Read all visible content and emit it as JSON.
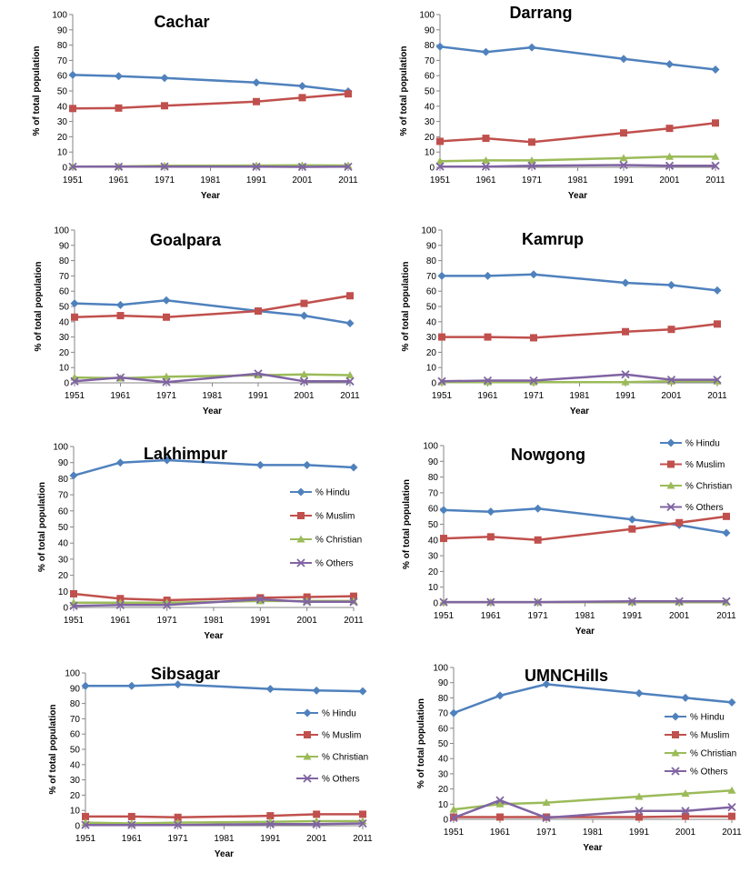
{
  "legend_labels": [
    "% Hindu",
    "% Muslim",
    "% Christian",
    "% Others"
  ],
  "colors": {
    "hindu": "#4F81BD",
    "muslim": "#C0504D",
    "christian": "#9BBB59",
    "others": "#8064A2"
  },
  "chart_data": [
    {
      "type": "line",
      "title": "Cachar",
      "xlabel": "Year",
      "ylabel": "% of total population",
      "ylim": [
        0,
        100
      ],
      "yticks": [
        0,
        10,
        20,
        30,
        40,
        50,
        60,
        70,
        80,
        90,
        100
      ],
      "xticks": [
        1951,
        1961,
        1971,
        1981,
        1991,
        2001,
        2011
      ],
      "show_legend": false,
      "series": [
        {
          "name": "% Hindu",
          "x": [
            1951,
            1961,
            1971,
            1991,
            2001,
            2011
          ],
          "values": [
            60.5,
            59.7,
            58.5,
            55.5,
            53.2,
            49.7
          ]
        },
        {
          "name": "% Muslim",
          "x": [
            1951,
            1961,
            1971,
            1991,
            2001,
            2011
          ],
          "values": [
            38.5,
            38.8,
            40.3,
            43.0,
            45.6,
            48.1
          ]
        },
        {
          "name": "% Christian",
          "x": [
            1951,
            1961,
            1971,
            1991,
            2001,
            2011
          ],
          "values": [
            0.5,
            0.6,
            1.0,
            1.2,
            1.3,
            1.2
          ]
        },
        {
          "name": "% Others",
          "x": [
            1951,
            1961,
            1971,
            1991,
            2001,
            2011
          ],
          "values": [
            0.4,
            0.4,
            0.5,
            0.4,
            0.3,
            0.4
          ]
        }
      ]
    },
    {
      "type": "line",
      "title": "Darrang",
      "xlabel": "Year",
      "ylabel": "% of total population",
      "ylim": [
        0,
        100
      ],
      "yticks": [
        0,
        10,
        20,
        30,
        40,
        50,
        60,
        70,
        80,
        90,
        100
      ],
      "xticks": [
        1951,
        1961,
        1971,
        1981,
        1991,
        2001,
        2011
      ],
      "show_legend": false,
      "series": [
        {
          "name": "% Hindu",
          "x": [
            1951,
            1961,
            1971,
            1991,
            2001,
            2011
          ],
          "values": [
            79,
            75.5,
            78.5,
            71,
            67.5,
            64
          ]
        },
        {
          "name": "% Muslim",
          "x": [
            1951,
            1961,
            1971,
            1991,
            2001,
            2011
          ],
          "values": [
            17,
            19,
            16.5,
            22.5,
            25.5,
            29
          ]
        },
        {
          "name": "% Christian",
          "x": [
            1951,
            1961,
            1971,
            1991,
            2001,
            2011
          ],
          "values": [
            4,
            4.5,
            4.5,
            6,
            7,
            7
          ]
        },
        {
          "name": "% Others",
          "x": [
            1951,
            1961,
            1971,
            1991,
            2001,
            2011
          ],
          "values": [
            0.5,
            0.5,
            1,
            1.5,
            1,
            1
          ]
        }
      ]
    },
    {
      "type": "line",
      "title": "Goalpara",
      "xlabel": "Year",
      "ylabel": "% of total population",
      "ylim": [
        0,
        100
      ],
      "yticks": [
        0,
        10,
        20,
        30,
        40,
        50,
        60,
        70,
        80,
        90,
        100
      ],
      "xticks": [
        1951,
        1961,
        1971,
        1981,
        1991,
        2001,
        2011
      ],
      "show_legend": false,
      "series": [
        {
          "name": "% Hindu",
          "x": [
            1951,
            1961,
            1971,
            1991,
            2001,
            2011
          ],
          "values": [
            52,
            51,
            54,
            47,
            44,
            39
          ]
        },
        {
          "name": "% Muslim",
          "x": [
            1951,
            1961,
            1971,
            1991,
            2001,
            2011
          ],
          "values": [
            43,
            44,
            43,
            47,
            52,
            57
          ]
        },
        {
          "name": "% Christian",
          "x": [
            1951,
            1961,
            1971,
            1991,
            2001,
            2011
          ],
          "values": [
            3.5,
            3,
            4,
            5,
            5.5,
            5
          ]
        },
        {
          "name": "% Others",
          "x": [
            1951,
            1961,
            1971,
            1991,
            2001,
            2011
          ],
          "values": [
            1,
            3.5,
            0.5,
            6,
            1,
            1
          ]
        }
      ]
    },
    {
      "type": "line",
      "title": "Kamrup",
      "xlabel": "Year",
      "ylabel": "% of total population",
      "ylim": [
        0,
        100
      ],
      "yticks": [
        0,
        10,
        20,
        30,
        40,
        50,
        60,
        70,
        80,
        90,
        100
      ],
      "xticks": [
        1951,
        1961,
        1971,
        1981,
        1991,
        2001,
        2011
      ],
      "show_legend": false,
      "series": [
        {
          "name": "% Hindu",
          "x": [
            1951,
            1961,
            1971,
            1991,
            2001,
            2011
          ],
          "values": [
            70,
            70,
            71,
            65.5,
            64,
            60.5
          ]
        },
        {
          "name": "% Muslim",
          "x": [
            1951,
            1961,
            1971,
            1991,
            2001,
            2011
          ],
          "values": [
            30,
            30,
            29.5,
            33.5,
            35,
            38.5
          ]
        },
        {
          "name": "% Christian",
          "x": [
            1951,
            1961,
            1971,
            1991,
            2001,
            2011
          ],
          "values": [
            0.5,
            0.5,
            0.5,
            0.5,
            1,
            1
          ]
        },
        {
          "name": "% Others",
          "x": [
            1951,
            1961,
            1971,
            1991,
            2001,
            2011
          ],
          "values": [
            1,
            1.5,
            1.5,
            5.5,
            2,
            2
          ]
        }
      ]
    },
    {
      "type": "line",
      "title": "Lakhimpur",
      "xlabel": "Year",
      "ylabel": "% of total population",
      "ylim": [
        0,
        100
      ],
      "yticks": [
        0,
        10,
        20,
        30,
        40,
        50,
        60,
        70,
        80,
        90,
        100
      ],
      "xticks": [
        1951,
        1961,
        1971,
        1981,
        1991,
        2001,
        2011
      ],
      "show_legend": true,
      "legend_position": "right",
      "series": [
        {
          "name": "% Hindu",
          "x": [
            1951,
            1961,
            1971,
            1991,
            2001,
            2011
          ],
          "values": [
            82,
            90,
            91.5,
            88.5,
            88.5,
            87
          ]
        },
        {
          "name": "% Muslim",
          "x": [
            1951,
            1961,
            1971,
            1991,
            2001,
            2011
          ],
          "values": [
            8.5,
            5.5,
            4.5,
            6,
            6.5,
            7
          ]
        },
        {
          "name": "% Christian",
          "x": [
            1951,
            1961,
            1971,
            1991,
            2001,
            2011
          ],
          "values": [
            3,
            3,
            3,
            4,
            4,
            4
          ]
        },
        {
          "name": "% Others",
          "x": [
            1951,
            1961,
            1971,
            1991,
            2001,
            2011
          ],
          "values": [
            1,
            1.5,
            1.5,
            5,
            3.5,
            3.5
          ]
        }
      ]
    },
    {
      "type": "line",
      "title": "Nowgong",
      "xlabel": "Year",
      "ylabel": "% of total population",
      "ylim": [
        0,
        100
      ],
      "yticks": [
        0,
        10,
        20,
        30,
        40,
        50,
        60,
        70,
        80,
        90,
        100
      ],
      "xticks": [
        1951,
        1961,
        1971,
        1981,
        1991,
        2001,
        2011
      ],
      "show_legend": true,
      "legend_position": "top-right",
      "series": [
        {
          "name": "% Hindu",
          "x": [
            1951,
            1961,
            1971,
            1991,
            2001,
            2011
          ],
          "values": [
            59,
            58,
            60,
            53,
            49.5,
            44.5
          ]
        },
        {
          "name": "% Muslim",
          "x": [
            1951,
            1961,
            1971,
            1991,
            2001,
            2011
          ],
          "values": [
            41,
            42,
            40,
            47,
            51,
            55
          ]
        },
        {
          "name": "% Christian",
          "x": [
            1951,
            1961,
            1971,
            1991,
            2001,
            2011
          ],
          "values": [
            0.5,
            0.5,
            0.5,
            0.5,
            0.5,
            0.5
          ]
        },
        {
          "name": "% Others",
          "x": [
            1951,
            1961,
            1971,
            1991,
            2001,
            2011
          ],
          "values": [
            0.5,
            0.5,
            0.5,
            1,
            1,
            1
          ]
        }
      ]
    },
    {
      "type": "line",
      "title": "Sibsagar",
      "xlabel": "Year",
      "ylabel": "% of total population",
      "ylim": [
        0,
        100
      ],
      "yticks": [
        0,
        10,
        20,
        30,
        40,
        50,
        60,
        70,
        80,
        90,
        100
      ],
      "xticks": [
        1951,
        1961,
        1971,
        1981,
        1991,
        2001,
        2011
      ],
      "show_legend": true,
      "legend_position": "right",
      "series": [
        {
          "name": "% Hindu",
          "x": [
            1951,
            1961,
            1971,
            1991,
            2001,
            2011
          ],
          "values": [
            91.5,
            91.5,
            92.5,
            89.5,
            88.5,
            88
          ]
        },
        {
          "name": "% Muslim",
          "x": [
            1951,
            1961,
            1971,
            1991,
            2001,
            2011
          ],
          "values": [
            6,
            6,
            5.5,
            6.5,
            7.5,
            7.5
          ]
        },
        {
          "name": "% Christian",
          "x": [
            1951,
            1961,
            1971,
            1991,
            2001,
            2011
          ],
          "values": [
            2,
            1.5,
            2,
            2.5,
            3,
            3
          ]
        },
        {
          "name": "% Others",
          "x": [
            1951,
            1961,
            1971,
            1991,
            2001,
            2011
          ],
          "values": [
            0.5,
            0.5,
            0.5,
            1,
            1,
            1.5
          ]
        }
      ]
    },
    {
      "type": "line",
      "title": "UMNCHills",
      "xlabel": "Year",
      "ylabel": "% of total population",
      "ylim": [
        0,
        100
      ],
      "yticks": [
        0,
        10,
        20,
        30,
        40,
        50,
        60,
        70,
        80,
        90,
        100
      ],
      "xticks": [
        1951,
        1961,
        1971,
        1981,
        1991,
        2001,
        2011
      ],
      "show_legend": true,
      "legend_position": "right",
      "series": [
        {
          "name": "% Hindu",
          "x": [
            1951,
            1961,
            1971,
            1991,
            2001,
            2011
          ],
          "values": [
            70,
            81.5,
            89,
            83,
            80,
            77
          ]
        },
        {
          "name": "% Muslim",
          "x": [
            1951,
            1961,
            1971,
            1991,
            2001,
            2011
          ],
          "values": [
            1.5,
            1.5,
            1.5,
            1.5,
            2,
            2
          ]
        },
        {
          "name": "% Christian",
          "x": [
            1951,
            1961,
            1971,
            1991,
            2001,
            2011
          ],
          "values": [
            6.5,
            10,
            11,
            15,
            17,
            19
          ]
        },
        {
          "name": "% Others",
          "x": [
            1951,
            1961,
            1971,
            1991,
            2001,
            2011
          ],
          "values": [
            1,
            12.5,
            1,
            5.5,
            5.5,
            8
          ]
        }
      ]
    }
  ]
}
